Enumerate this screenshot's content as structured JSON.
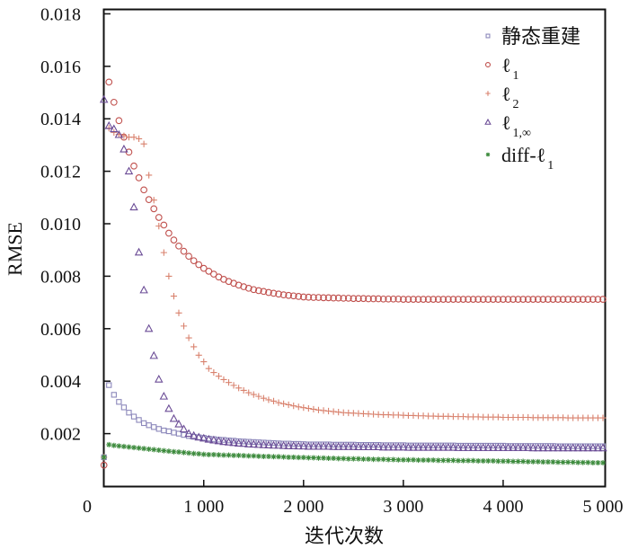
{
  "chart_data": {
    "type": "scatter",
    "title": "",
    "xlabel": "迭代次数",
    "ylabel": "RMSE",
    "xlim": [
      0,
      5000
    ],
    "ylim": [
      0,
      0.018
    ],
    "x_start": 0,
    "x_step": 50,
    "grid": false,
    "legend_position": "top-right",
    "x_ticks": [
      {
        "value": 0,
        "label": "0"
      },
      {
        "value": 1000,
        "label": "1 000"
      },
      {
        "value": 2000,
        "label": "2 000"
      },
      {
        "value": 3000,
        "label": "3 000"
      },
      {
        "value": 4000,
        "label": "4 000"
      },
      {
        "value": 5000,
        "label": "5 000"
      }
    ],
    "y_ticks": [
      {
        "value": 0.002,
        "label": "0.002"
      },
      {
        "value": 0.004,
        "label": "0.004"
      },
      {
        "value": 0.006,
        "label": "0.006"
      },
      {
        "value": 0.008,
        "label": "0.008"
      },
      {
        "value": 0.01,
        "label": "0.010"
      },
      {
        "value": 0.012,
        "label": "0.012"
      },
      {
        "value": 0.014,
        "label": "0.014"
      },
      {
        "value": 0.016,
        "label": "0.016"
      },
      {
        "value": 0.018,
        "label": "0.018"
      }
    ],
    "series": [
      {
        "id": "static",
        "label": "静态重建",
        "subscript": "",
        "marker": "square",
        "color": "#8c88bb",
        "values": [
          0.0011,
          0.00385,
          0.00348,
          0.00321,
          0.003,
          0.0028,
          0.00265,
          0.00252,
          0.0024,
          0.00232,
          0.00225,
          0.00218,
          0.00212,
          0.00209,
          0.00204,
          0.002,
          0.00195,
          0.00191,
          0.00188,
          0.00186,
          0.00184,
          0.00181,
          0.00179,
          0.00177,
          0.00176,
          0.00174,
          0.00173,
          0.00171,
          0.0017,
          0.00169,
          0.00168,
          0.00167,
          0.00166,
          0.00165,
          0.00164,
          0.00163,
          0.00162,
          0.00162,
          0.00161,
          0.00161,
          0.0016,
          0.00159,
          0.00159,
          0.00159,
          0.00159,
          0.00159,
          0.00158,
          0.00158,
          0.00158,
          0.00158,
          0.00158,
          0.00157,
          0.00157,
          0.00157,
          0.00157,
          0.00157,
          0.00156,
          0.00156,
          0.00156,
          0.00156,
          0.00156,
          0.00155,
          0.00155,
          0.00155,
          0.00155,
          0.00155,
          0.00155,
          0.00155,
          0.00155,
          0.00155,
          0.00155,
          0.00154,
          0.00154,
          0.00154,
          0.00154,
          0.00154,
          0.00154,
          0.00154,
          0.00154,
          0.00154,
          0.00154,
          0.00153,
          0.00153,
          0.00153,
          0.00153,
          0.00153,
          0.00153,
          0.00153,
          0.00153,
          0.00153,
          0.00153,
          0.00152,
          0.00152,
          0.00152,
          0.00152,
          0.00152,
          0.00152,
          0.00152,
          0.00152,
          0.00152,
          0.00152
        ]
      },
      {
        "id": "l1",
        "label": "ℓ",
        "subscript": "1",
        "marker": "circle",
        "color": "#c0504d",
        "values": [
          0.0008,
          0.0154,
          0.01463,
          0.01393,
          0.0133,
          0.01273,
          0.0122,
          0.01175,
          0.01129,
          0.01092,
          0.01057,
          0.01024,
          0.00995,
          0.00964,
          0.00938,
          0.00915,
          0.00895,
          0.00876,
          0.00859,
          0.00844,
          0.0083,
          0.00819,
          0.00808,
          0.00797,
          0.00788,
          0.0078,
          0.00773,
          0.00766,
          0.0076,
          0.00754,
          0.00749,
          0.00745,
          0.00742,
          0.00738,
          0.00735,
          0.00732,
          0.00729,
          0.00727,
          0.00725,
          0.00723,
          0.00721,
          0.0072,
          0.00719,
          0.00719,
          0.00718,
          0.00718,
          0.00717,
          0.00717,
          0.00716,
          0.00716,
          0.00715,
          0.00715,
          0.00715,
          0.00714,
          0.00714,
          0.00714,
          0.00713,
          0.00713,
          0.00713,
          0.00713,
          0.00712,
          0.00712,
          0.00712,
          0.00712,
          0.00712,
          0.00712,
          0.00712,
          0.00712,
          0.00712,
          0.00712,
          0.00712,
          0.00712,
          0.00712,
          0.00712,
          0.00712,
          0.00712,
          0.00712,
          0.00712,
          0.00712,
          0.00712,
          0.00712,
          0.00712,
          0.00712,
          0.00712,
          0.00712,
          0.00712,
          0.00712,
          0.00712,
          0.00712,
          0.00712,
          0.00712,
          0.00712,
          0.00712,
          0.00712,
          0.00712,
          0.00712,
          0.00712,
          0.00712,
          0.00712,
          0.00712,
          0.00712
        ]
      },
      {
        "id": "l2",
        "label": "ℓ",
        "subscript": "2",
        "marker": "plus",
        "color": "#d9826e",
        "values": [
          0.0011,
          0.01364,
          0.01348,
          0.0134,
          0.01335,
          0.0133,
          0.0133,
          0.01324,
          0.01304,
          0.01185,
          0.0109,
          0.00991,
          0.0089,
          0.008,
          0.00724,
          0.0066,
          0.0061,
          0.00565,
          0.00531,
          0.00499,
          0.00474,
          0.00448,
          0.00433,
          0.00419,
          0.00406,
          0.00395,
          0.00384,
          0.00374,
          0.00365,
          0.00356,
          0.00349,
          0.00342,
          0.00335,
          0.00329,
          0.00324,
          0.00318,
          0.00314,
          0.0031,
          0.00306,
          0.00302,
          0.00299,
          0.00296,
          0.00293,
          0.0029,
          0.00288,
          0.00286,
          0.00284,
          0.00282,
          0.0028,
          0.00279,
          0.00278,
          0.00277,
          0.00276,
          0.00275,
          0.00274,
          0.00273,
          0.00272,
          0.00272,
          0.00271,
          0.00271,
          0.0027,
          0.00269,
          0.00269,
          0.00268,
          0.00268,
          0.00267,
          0.00267,
          0.00266,
          0.00266,
          0.00266,
          0.00265,
          0.00265,
          0.00265,
          0.00264,
          0.00264,
          0.00264,
          0.00263,
          0.00263,
          0.00263,
          0.00263,
          0.00262,
          0.00262,
          0.00262,
          0.00262,
          0.00262,
          0.00262,
          0.00261,
          0.00261,
          0.00261,
          0.00261,
          0.00261,
          0.00261,
          0.00261,
          0.0026,
          0.0026,
          0.0026,
          0.0026,
          0.0026,
          0.0026,
          0.0026,
          0.0026
        ]
      },
      {
        "id": "l1inf",
        "label": "ℓ",
        "subscript": "1,∞",
        "marker": "triangle",
        "color": "#6b4c96",
        "values": [
          0.01473,
          0.01373,
          0.01361,
          0.01339,
          0.01284,
          0.012,
          0.01063,
          0.00891,
          0.00747,
          0.006,
          0.00497,
          0.00407,
          0.00342,
          0.00295,
          0.00257,
          0.00236,
          0.00217,
          0.002,
          0.00192,
          0.00186,
          0.00182,
          0.00178,
          0.00175,
          0.00172,
          0.00169,
          0.00167,
          0.00165,
          0.00163,
          0.00162,
          0.0016,
          0.00159,
          0.00158,
          0.00157,
          0.00156,
          0.00155,
          0.00155,
          0.00154,
          0.00153,
          0.00153,
          0.00152,
          0.00152,
          0.00151,
          0.00151,
          0.00151,
          0.00151,
          0.00151,
          0.0015,
          0.0015,
          0.0015,
          0.0015,
          0.0015,
          0.00149,
          0.00149,
          0.00149,
          0.00149,
          0.00149,
          0.00148,
          0.00148,
          0.00148,
          0.00148,
          0.00148,
          0.00147,
          0.00147,
          0.00147,
          0.00147,
          0.00147,
          0.00147,
          0.00147,
          0.00147,
          0.00147,
          0.00147,
          0.00146,
          0.00146,
          0.00146,
          0.00146,
          0.00146,
          0.00146,
          0.00146,
          0.00146,
          0.00146,
          0.00146,
          0.00146,
          0.00146,
          0.00146,
          0.00146,
          0.00146,
          0.00145,
          0.00145,
          0.00145,
          0.00145,
          0.00145,
          0.00145,
          0.00145,
          0.00145,
          0.00145,
          0.00145,
          0.00145,
          0.00145,
          0.00145,
          0.00145,
          0.00145
        ]
      },
      {
        "id": "diffl1",
        "label": "diff-ℓ",
        "subscript": "1",
        "marker": "star",
        "color": "#3d8b3d",
        "values": [
          0.0011,
          0.00158,
          0.00155,
          0.00153,
          0.00151,
          0.00149,
          0.00147,
          0.00145,
          0.00143,
          0.00141,
          0.00139,
          0.00137,
          0.00135,
          0.00133,
          0.00131,
          0.0013,
          0.00128,
          0.00126,
          0.00124,
          0.00123,
          0.00121,
          0.0012,
          0.0012,
          0.00119,
          0.00118,
          0.00118,
          0.00117,
          0.00117,
          0.00116,
          0.00115,
          0.00115,
          0.00114,
          0.00113,
          0.00113,
          0.00112,
          0.00112,
          0.00111,
          0.0011,
          0.0011,
          0.00109,
          0.00109,
          0.00108,
          0.00108,
          0.00107,
          0.00107,
          0.00106,
          0.00106,
          0.00105,
          0.00105,
          0.00104,
          0.00104,
          0.00104,
          0.00103,
          0.00103,
          0.00102,
          0.00102,
          0.00102,
          0.00101,
          0.00101,
          0.001,
          0.001,
          0.001,
          0.001,
          0.00099,
          0.00099,
          0.00099,
          0.00099,
          0.00098,
          0.00098,
          0.00098,
          0.00098,
          0.00097,
          0.00097,
          0.00097,
          0.00097,
          0.00096,
          0.00096,
          0.00096,
          0.00096,
          0.00095,
          0.00095,
          0.00095,
          0.00094,
          0.00094,
          0.00094,
          0.00093,
          0.00093,
          0.00093,
          0.00092,
          0.00092,
          0.00092,
          0.00091,
          0.00091,
          0.00091,
          0.00091,
          0.0009,
          0.0009,
          0.0009,
          0.00089,
          0.00089,
          0.00089
        ]
      }
    ]
  }
}
